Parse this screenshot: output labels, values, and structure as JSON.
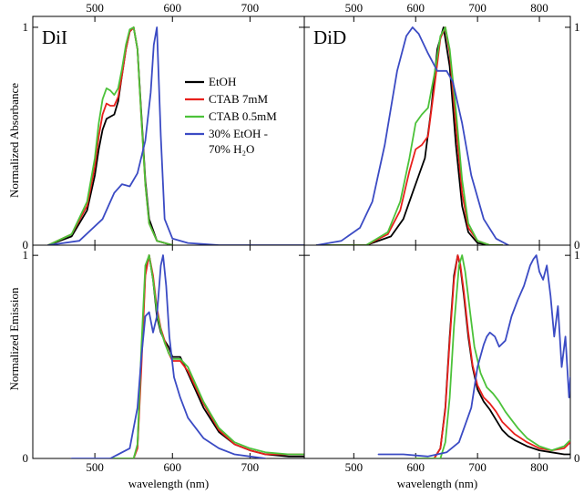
{
  "chart_data": {
    "type": "line",
    "panels": [
      {
        "id": "abs-dii",
        "title": "DiI",
        "xlim": [
          420,
          770
        ],
        "ylim": [
          0,
          1.05
        ],
        "xticks": [
          500,
          600,
          700
        ],
        "yticks": [
          0,
          1
        ],
        "series": [
          {
            "name": "EtOH",
            "color": "#000000",
            "x": [
              440,
              470,
              490,
              500,
              505,
              510,
              515,
              520,
              525,
              530,
              535,
              540,
              545,
              550,
              555,
              560,
              565,
              570,
              580,
              600
            ],
            "y": [
              0.0,
              0.04,
              0.16,
              0.32,
              0.44,
              0.53,
              0.58,
              0.59,
              0.6,
              0.66,
              0.78,
              0.9,
              0.98,
              1.0,
              0.9,
              0.6,
              0.3,
              0.12,
              0.02,
              0.0
            ]
          },
          {
            "name": "CTAB 7mM",
            "color": "#e8201c",
            "x": [
              440,
              470,
              490,
              500,
              505,
              510,
              515,
              520,
              525,
              530,
              535,
              540,
              545,
              550,
              555,
              560,
              565,
              570,
              580,
              600
            ],
            "y": [
              0.0,
              0.05,
              0.18,
              0.36,
              0.5,
              0.6,
              0.65,
              0.64,
              0.64,
              0.68,
              0.78,
              0.9,
              0.98,
              1.0,
              0.9,
              0.58,
              0.28,
              0.1,
              0.02,
              0.0
            ]
          },
          {
            "name": "CTAB 0.5mM",
            "color": "#4cc23a",
            "x": [
              440,
              470,
              490,
              500,
              505,
              510,
              515,
              520,
              525,
              530,
              535,
              540,
              545,
              550,
              555,
              560,
              565,
              570,
              580,
              600
            ],
            "y": [
              0.0,
              0.05,
              0.2,
              0.4,
              0.56,
              0.67,
              0.72,
              0.71,
              0.69,
              0.72,
              0.81,
              0.92,
              0.99,
              1.0,
              0.9,
              0.58,
              0.28,
              0.1,
              0.02,
              0.0
            ]
          },
          {
            "name": "30% EtOH - 70% H₂O",
            "color": "#3b4bc4",
            "x": [
              440,
              480,
              510,
              525,
              535,
              545,
              555,
              565,
              572,
              576,
              580,
              585,
              590,
              600,
              620,
              640,
              660,
              700,
              770
            ],
            "y": [
              0.0,
              0.02,
              0.12,
              0.24,
              0.28,
              0.27,
              0.33,
              0.48,
              0.7,
              0.92,
              1.0,
              0.5,
              0.12,
              0.03,
              0.01,
              0.005,
              0.0,
              0.0,
              0.0
            ]
          }
        ]
      },
      {
        "id": "abs-did",
        "title": "DiD",
        "xlim": [
          420,
          850
        ],
        "ylim": [
          0,
          1.05
        ],
        "xticks": [
          500,
          600,
          700,
          800
        ],
        "yticks": [
          0,
          1
        ],
        "series": [
          {
            "name": "EtOH",
            "color": "#000000",
            "x": [
              440,
              520,
              560,
              580,
              595,
              605,
              615,
              625,
              635,
              645,
              655,
              665,
              675,
              685,
              700,
              720,
              740
            ],
            "y": [
              0.0,
              0.0,
              0.04,
              0.12,
              0.24,
              0.32,
              0.4,
              0.62,
              0.9,
              1.0,
              0.82,
              0.46,
              0.18,
              0.06,
              0.01,
              0.0,
              0.0
            ]
          },
          {
            "name": "CTAB 7mM",
            "color": "#e8201c",
            "x": [
              440,
              520,
              555,
              575,
              590,
              600,
              610,
              620,
              630,
              640,
              648,
              655,
              665,
              675,
              685,
              700,
              720,
              740
            ],
            "y": [
              0.0,
              0.0,
              0.05,
              0.16,
              0.34,
              0.44,
              0.46,
              0.5,
              0.72,
              0.95,
              1.0,
              0.88,
              0.55,
              0.24,
              0.08,
              0.02,
              0.0,
              0.0
            ]
          },
          {
            "name": "CTAB 0.5mM",
            "color": "#4cc23a",
            "x": [
              440,
              520,
              555,
              575,
              590,
              600,
              610,
              620,
              630,
              640,
              648,
              655,
              665,
              675,
              685,
              700,
              720,
              740
            ],
            "y": [
              0.0,
              0.0,
              0.06,
              0.2,
              0.4,
              0.56,
              0.6,
              0.63,
              0.78,
              0.96,
              1.0,
              0.9,
              0.62,
              0.3,
              0.1,
              0.02,
              0.0,
              0.0
            ]
          },
          {
            "name": "30% EtOH - 70% H₂O",
            "color": "#3b4bc4",
            "x": [
              440,
              480,
              510,
              530,
              550,
              570,
              585,
              595,
              605,
              620,
              635,
              650,
              660,
              675,
              690,
              710,
              730,
              750
            ],
            "y": [
              0.0,
              0.02,
              0.08,
              0.2,
              0.46,
              0.8,
              0.96,
              1.0,
              0.97,
              0.88,
              0.8,
              0.8,
              0.75,
              0.56,
              0.32,
              0.12,
              0.03,
              0.0
            ]
          }
        ]
      },
      {
        "id": "em-dii",
        "title": "",
        "xlim": [
          420,
          770
        ],
        "ylim": [
          0,
          1.05
        ],
        "xticks": [
          500,
          600,
          700
        ],
        "yticks": [
          0,
          1
        ],
        "xlabel": "wavelength (nm)",
        "series": [
          {
            "name": "EtOH",
            "color": "#000000",
            "x": [
              520,
              550,
              555,
              560,
              565,
              570,
              575,
              580,
              585,
              590,
              595,
              600,
              610,
              620,
              640,
              660,
              680,
              700,
              720,
              750,
              770
            ],
            "y": [
              0.0,
              0.0,
              0.06,
              0.5,
              0.92,
              1.0,
              0.88,
              0.7,
              0.62,
              0.58,
              0.55,
              0.5,
              0.5,
              0.42,
              0.25,
              0.13,
              0.07,
              0.04,
              0.02,
              0.01,
              0.01
            ]
          },
          {
            "name": "CTAB 7mM",
            "color": "#e8201c",
            "x": [
              520,
              550,
              555,
              560,
              565,
              570,
              575,
              580,
              585,
              590,
              595,
              600,
              610,
              620,
              640,
              660,
              680,
              700,
              720,
              750,
              770
            ],
            "y": [
              0.0,
              0.0,
              0.05,
              0.45,
              0.9,
              1.0,
              0.9,
              0.74,
              0.64,
              0.58,
              0.52,
              0.48,
              0.48,
              0.43,
              0.27,
              0.14,
              0.07,
              0.04,
              0.02,
              0.02,
              0.02
            ]
          },
          {
            "name": "CTAB 0.5mM",
            "color": "#4cc23a",
            "x": [
              520,
              550,
              555,
              560,
              565,
              570,
              575,
              580,
              585,
              590,
              595,
              600,
              610,
              620,
              640,
              660,
              680,
              700,
              720,
              750,
              770
            ],
            "y": [
              0.0,
              0.0,
              0.07,
              0.55,
              0.95,
              1.0,
              0.88,
              0.72,
              0.63,
              0.57,
              0.52,
              0.49,
              0.49,
              0.45,
              0.28,
              0.15,
              0.08,
              0.05,
              0.03,
              0.02,
              0.02
            ]
          },
          {
            "name": "30% EtOH - 70% H₂O",
            "color": "#3b4bc4",
            "x": [
              470,
              520,
              545,
              555,
              560,
              565,
              570,
              575,
              580,
              585,
              588,
              592,
              596,
              602,
              610,
              620,
              640,
              660,
              680,
              700,
              720
            ],
            "y": [
              0.0,
              0.0,
              0.05,
              0.25,
              0.5,
              0.7,
              0.72,
              0.62,
              0.7,
              0.95,
              1.0,
              0.85,
              0.6,
              0.4,
              0.3,
              0.2,
              0.1,
              0.05,
              0.02,
              0.01,
              0.0
            ]
          }
        ]
      },
      {
        "id": "em-did",
        "title": "",
        "xlim": [
          420,
          850
        ],
        "ylim": [
          0,
          1.05
        ],
        "xticks": [
          500,
          600,
          700,
          800
        ],
        "yticks": [
          0,
          1
        ],
        "xlabel": "wavelength (nm)",
        "series": [
          {
            "name": "EtOH",
            "color": "#000000",
            "x": [
              600,
              630,
              640,
              648,
              655,
              662,
              668,
              672,
              678,
              685,
              692,
              700,
              710,
              720,
              730,
              740,
              750,
              760,
              780,
              800,
              820,
              840,
              850
            ],
            "y": [
              0.0,
              0.0,
              0.05,
              0.25,
              0.6,
              0.9,
              1.0,
              0.95,
              0.8,
              0.6,
              0.45,
              0.34,
              0.28,
              0.24,
              0.19,
              0.14,
              0.11,
              0.09,
              0.06,
              0.04,
              0.03,
              0.02,
              0.02
            ]
          },
          {
            "name": "CTAB 7mM",
            "color": "#e8201c",
            "x": [
              600,
              630,
              640,
              648,
              655,
              662,
              668,
              672,
              678,
              685,
              692,
              700,
              710,
              720,
              730,
              740,
              750,
              760,
              780,
              800,
              820,
              840,
              850
            ],
            "y": [
              0.0,
              0.0,
              0.05,
              0.24,
              0.58,
              0.88,
              1.0,
              0.96,
              0.82,
              0.62,
              0.46,
              0.36,
              0.3,
              0.27,
              0.23,
              0.18,
              0.15,
              0.12,
              0.08,
              0.05,
              0.04,
              0.05,
              0.08
            ]
          },
          {
            "name": "CTAB 0.5mM",
            "color": "#4cc23a",
            "x": [
              600,
              640,
              648,
              655,
              662,
              670,
              675,
              680,
              688,
              695,
              705,
              715,
              725,
              735,
              745,
              755,
              765,
              780,
              800,
              820,
              840,
              850
            ],
            "y": [
              0.0,
              0.0,
              0.08,
              0.3,
              0.65,
              0.95,
              1.0,
              0.92,
              0.72,
              0.55,
              0.42,
              0.35,
              0.32,
              0.28,
              0.23,
              0.19,
              0.15,
              0.1,
              0.06,
              0.04,
              0.06,
              0.09
            ]
          },
          {
            "name": "30% EtOH - 70% H₂O",
            "color": "#3b4bc4",
            "x": [
              540,
              580,
              620,
              650,
              670,
              690,
              700,
              710,
              715,
              720,
              728,
              735,
              745,
              755,
              765,
              775,
              785,
              790,
              795,
              800,
              806,
              812,
              818,
              824,
              830,
              836,
              842,
              848,
              850
            ],
            "y": [
              0.02,
              0.02,
              0.01,
              0.03,
              0.08,
              0.25,
              0.45,
              0.56,
              0.6,
              0.62,
              0.6,
              0.55,
              0.58,
              0.7,
              0.78,
              0.85,
              0.95,
              0.98,
              1.0,
              0.92,
              0.88,
              0.95,
              0.8,
              0.6,
              0.75,
              0.45,
              0.6,
              0.3,
              0.4
            ]
          }
        ]
      }
    ],
    "ylabel_top": "Normalized Absorbance",
    "ylabel_bottom": "Normalized Emission",
    "legend": {
      "placement": "top-left panel, upper-right",
      "entries": [
        {
          "lines": [
            "EtOH"
          ],
          "color": "#000000"
        },
        {
          "lines": [
            "CTAB 7mM"
          ],
          "color": "#e8201c"
        },
        {
          "lines": [
            "CTAB 0.5mM"
          ],
          "color": "#4cc23a"
        },
        {
          "lines": [
            "30% EtOH -",
            "70% H₂O"
          ],
          "color": "#3b4bc4"
        }
      ]
    },
    "grid": false
  }
}
